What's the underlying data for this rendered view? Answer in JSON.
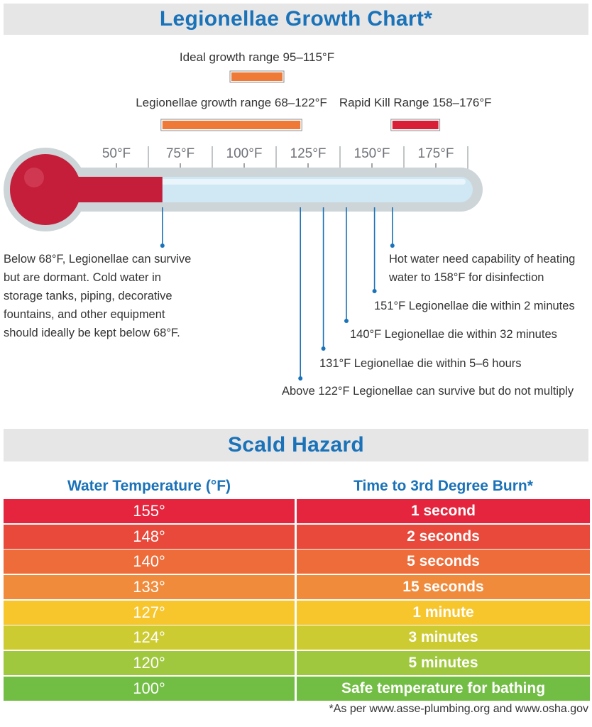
{
  "growth_title": "Legionellae Growth Chart*",
  "scald_title": "Scald Hazard",
  "colors": {
    "title_blue": "#1a72b8",
    "bulb_red": "#c41e3a",
    "tube_fill": "#cfe8f4",
    "orange_range": "#ef7a37",
    "red_range": "#d91f37"
  },
  "chart_data": {
    "type": "thermometer",
    "unit": "°F",
    "ticks": [
      "50°F",
      "75°F",
      "100°F",
      "125°F",
      "150°F",
      "175°F"
    ],
    "ranges": [
      {
        "label": "Ideal growth range 95–115°F",
        "min": 95,
        "max": 115
      },
      {
        "label": "Legionellae growth range 68–122°F",
        "min": 68,
        "max": 122
      },
      {
        "label": "Rapid Kill Range 158–176°F",
        "min": 158,
        "max": 176
      }
    ],
    "mercury_to": 68,
    "markers": [
      {
        "temp": 68,
        "text": [
          "Below 68°F, Legionellae can survive",
          "but are dormant. Cold water in",
          "storage tanks, piping, decorative",
          "fountains, and other equipment",
          "should ideally be kept below 68°F."
        ]
      },
      {
        "temp": 122,
        "text": [
          "Above 122°F Legionellae can survive but do not multiply"
        ]
      },
      {
        "temp": 131,
        "text": [
          "131°F Legionellae die within 5–6 hours"
        ]
      },
      {
        "temp": 140,
        "text": [
          "140°F Legionellae die within 32 minutes"
        ]
      },
      {
        "temp": 151,
        "text": [
          "151°F Legionellae die within 2 minutes"
        ]
      },
      {
        "temp": 158,
        "text": [
          "Hot water need capability of heating",
          "water to 158°F for disinfection"
        ]
      }
    ]
  },
  "scald_table": {
    "headers": {
      "temp": "Water Temperature (°F)",
      "time": "Time to 3rd Degree Burn*"
    },
    "rows": [
      {
        "temp": "155°",
        "time": "1 second",
        "color": "#e4253d"
      },
      {
        "temp": "148°",
        "time": "2 seconds",
        "color": "#e8493b"
      },
      {
        "temp": "140°",
        "time": "5 seconds",
        "color": "#ed6c39"
      },
      {
        "temp": "133°",
        "time": "15 seconds",
        "color": "#f18b3c"
      },
      {
        "temp": "127°",
        "time": "1 minute",
        "color": "#f7c52c"
      },
      {
        "temp": "124°",
        "time": "3 minutes",
        "color": "#cdcb32"
      },
      {
        "temp": "120°",
        "time": "5 minutes",
        "color": "#9fc83f"
      },
      {
        "temp": "100°",
        "time": "Safe temperature for bathing",
        "color": "#72bd44"
      }
    ]
  },
  "footnote": "*As per www.asse-plumbing.org and www.osha.gov"
}
